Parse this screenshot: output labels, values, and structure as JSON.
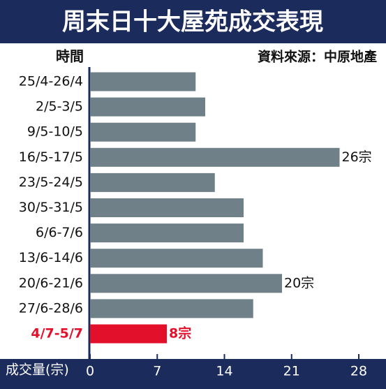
{
  "chart_data": {
    "type": "barh",
    "title": "周末日十大屋苑成交表現",
    "source": "資料來源：中原地產",
    "y_label": "時間",
    "x_label": "成交量(宗)",
    "categories": [
      "25/4-26/4",
      "2/5-3/5",
      "9/5-10/5",
      "16/5-17/5",
      "23/5-24/5",
      "30/5-31/5",
      "6/6-7/6",
      "13/6-14/6",
      "20/6-21/6",
      "27/6-28/6",
      "4/7-5/7"
    ],
    "values": [
      11,
      12,
      11,
      26,
      13,
      16,
      16,
      18,
      20,
      17,
      8
    ],
    "value_labels": [
      null,
      null,
      null,
      "26宗",
      null,
      null,
      null,
      null,
      "20宗",
      null,
      "8宗"
    ],
    "colors": [
      "#6f8088",
      "#6f8088",
      "#6f8088",
      "#6f8088",
      "#6f8088",
      "#6f8088",
      "#6f8088",
      "#6f8088",
      "#6f8088",
      "#6f8088",
      "#e3102b"
    ],
    "xlim": [
      0,
      28
    ],
    "xticks": [
      0,
      7,
      14,
      21,
      28
    ]
  }
}
